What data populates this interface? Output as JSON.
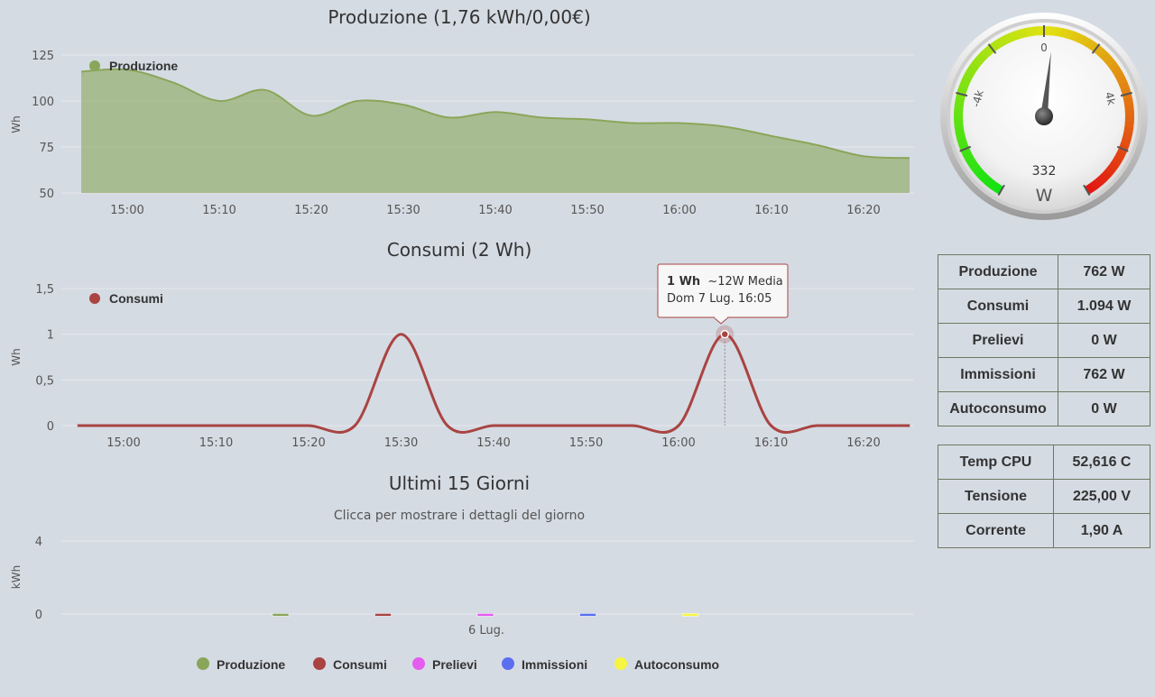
{
  "gauge": {
    "value": 332,
    "unit": "W",
    "min": -8000,
    "max": 8000,
    "ticks": [
      "-4k",
      "0",
      "4k"
    ]
  },
  "stats": [
    {
      "label": "Produzione",
      "value": "762 W"
    },
    {
      "label": "Consumi",
      "value": "1.094 W"
    },
    {
      "label": "Prelievi",
      "value": "0 W"
    },
    {
      "label": "Immissioni",
      "value": "762 W"
    },
    {
      "label": "Autoconsumo",
      "value": "0 W"
    }
  ],
  "system": [
    {
      "label": "Temp CPU",
      "value": "52,616 C"
    },
    {
      "label": "Tensione",
      "value": "225,00 V"
    },
    {
      "label": "Corrente",
      "value": "1,90 A"
    }
  ],
  "colors": {
    "produzione": "#8aa65a",
    "consumi": "#a94442",
    "prelievi": "#e45cf0",
    "immissioni": "#5b6ef0",
    "autoconsumo": "#f5f542"
  },
  "chart_data": [
    {
      "type": "area",
      "title": "Produzione (1,76 kWh/0,00€)",
      "ylabel": "Wh",
      "ylim": [
        50,
        125
      ],
      "yticks": [
        "50",
        "75",
        "100",
        "125"
      ],
      "xticks": [
        "15:00",
        "15:10",
        "15:20",
        "15:30",
        "15:40",
        "15:50",
        "16:00",
        "16:10",
        "16:20"
      ],
      "series": [
        {
          "name": "Produzione",
          "x": [
            "14:55",
            "15:00",
            "15:05",
            "15:10",
            "15:15",
            "15:20",
            "15:25",
            "15:30",
            "15:35",
            "15:40",
            "15:45",
            "15:50",
            "15:55",
            "16:00",
            "16:05",
            "16:10",
            "16:15",
            "16:20",
            "16:25"
          ],
          "values": [
            116,
            117,
            110,
            100,
            106,
            92,
            100,
            98,
            91,
            94,
            91,
            90,
            88,
            88,
            86,
            81,
            76,
            70,
            69
          ]
        }
      ]
    },
    {
      "type": "line",
      "title": "Consumi (2 Wh)",
      "ylabel": "Wh",
      "ylim": [
        0,
        1.5
      ],
      "yticks": [
        "0",
        "0,5",
        "1",
        "1,5"
      ],
      "xticks": [
        "15:00",
        "15:10",
        "15:20",
        "15:30",
        "15:40",
        "15:50",
        "16:00",
        "16:10",
        "16:20"
      ],
      "series": [
        {
          "name": "Consumi",
          "x": [
            "14:55",
            "15:00",
            "15:05",
            "15:10",
            "15:15",
            "15:20",
            "15:25",
            "15:30",
            "15:35",
            "15:40",
            "15:45",
            "15:50",
            "15:55",
            "16:00",
            "16:05",
            "16:10",
            "16:15",
            "16:20",
            "16:25"
          ],
          "values": [
            0,
            0,
            0,
            0,
            0,
            0,
            0,
            1,
            0,
            0,
            0,
            0,
            0,
            0,
            1,
            0,
            0,
            0,
            0
          ]
        }
      ],
      "tooltip": {
        "value": "1 Wh",
        "note": "~12W Media",
        "date": "Dom 7 Lug. 16:05"
      }
    },
    {
      "type": "bar",
      "title": "Ultimi 15 Giorni",
      "subtitle": "Clicca per mostrare i dettagli del giorno",
      "ylabel": "kWh",
      "ylim": [
        0,
        4
      ],
      "yticks": [
        "0",
        "4"
      ],
      "categories": [
        "6 Lug."
      ],
      "series": [
        {
          "name": "Produzione",
          "values": [
            0.03
          ]
        },
        {
          "name": "Consumi",
          "values": [
            0.03
          ]
        },
        {
          "name": "Prelievi",
          "values": [
            0.03
          ]
        },
        {
          "name": "Immissioni",
          "values": [
            0.03
          ]
        },
        {
          "name": "Autoconsumo",
          "values": [
            0.03
          ]
        }
      ]
    }
  ]
}
